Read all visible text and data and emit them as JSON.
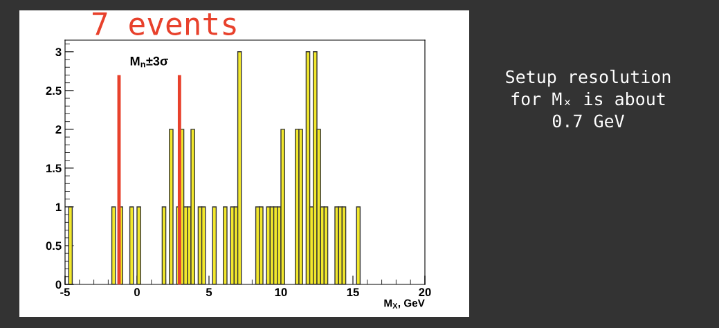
{
  "chart_data": {
    "type": "histogram",
    "title": "7 events",
    "xlabel": "M$_{X}$, GeV",
    "bins": [
      -5,
      -4.75,
      -4.5,
      -4.25,
      -4,
      -3.75,
      -3.5,
      -3.25,
      -3,
      -2.75,
      -2.5,
      -2.25,
      -2,
      -1.75,
      -1.5,
      -1.25,
      -1,
      -0.75,
      -0.5,
      -0.25,
      0,
      0.25,
      0.5,
      0.75,
      1,
      1.25,
      1.5,
      1.75,
      2,
      2.25,
      2.5,
      2.75,
      3,
      3.25,
      3.5,
      3.75,
      4,
      4.25,
      4.5,
      4.75,
      5,
      5.25,
      5.5,
      5.75,
      6,
      6.25,
      6.5,
      6.75,
      7,
      7.25,
      7.5,
      7.75,
      8,
      8.25,
      8.5,
      8.75,
      9,
      9.25,
      9.5,
      9.75,
      10,
      10.25,
      10.5,
      10.75,
      11,
      11.25,
      11.5,
      11.75,
      12,
      12.25,
      12.5,
      12.75,
      13,
      13.25,
      13.5,
      13.75,
      14,
      14.25,
      14.5,
      14.75,
      15,
      15.25,
      15.5,
      15.75,
      16,
      16.25,
      16.5,
      16.75,
      17,
      17.25,
      17.5,
      17.75,
      18,
      18.25,
      18.5,
      18.75,
      19,
      19.25,
      19.5,
      19.75,
      20
    ],
    "values": [
      0,
      1,
      0,
      0,
      0,
      0,
      0,
      0,
      0,
      0,
      0,
      0,
      0,
      1,
      0,
      1,
      0,
      0,
      1,
      0,
      1,
      0,
      0,
      0,
      0,
      0,
      0,
      1,
      0,
      2,
      0,
      1,
      2,
      1,
      1,
      2,
      0,
      1,
      1,
      0,
      0,
      1,
      0,
      0,
      1,
      0,
      1,
      1,
      3,
      0,
      0,
      0,
      0,
      1,
      1,
      0,
      1,
      1,
      1,
      1,
      2,
      0,
      0,
      0,
      2,
      2,
      0,
      3,
      1,
      3,
      2,
      1,
      1,
      0,
      0,
      1,
      1,
      1,
      0,
      0,
      0,
      1,
      0,
      0,
      0,
      0,
      0,
      0,
      0,
      0,
      0,
      0,
      0,
      0,
      0,
      0,
      0,
      0,
      0,
      0
    ],
    "color": "#f2e82c",
    "ref_lines": [
      {
        "axis": "x",
        "value": -1.25,
        "color": "#e8412c"
      },
      {
        "axis": "x",
        "value": 2.95,
        "color": "#e8412c"
      }
    ],
    "xlim": [
      -5,
      20
    ],
    "xticks": [
      -5,
      0,
      5,
      10,
      15,
      20
    ],
    "ylim": [
      0,
      3.15
    ],
    "yticks": [
      0,
      0.5,
      1,
      1.5,
      2,
      2.5,
      3
    ],
    "grid": false,
    "annotations": [
      "M$_{n}$±3σ",
      "Setup resolution\nfor Mₓ is about\n0.7 GeV"
    ]
  }
}
